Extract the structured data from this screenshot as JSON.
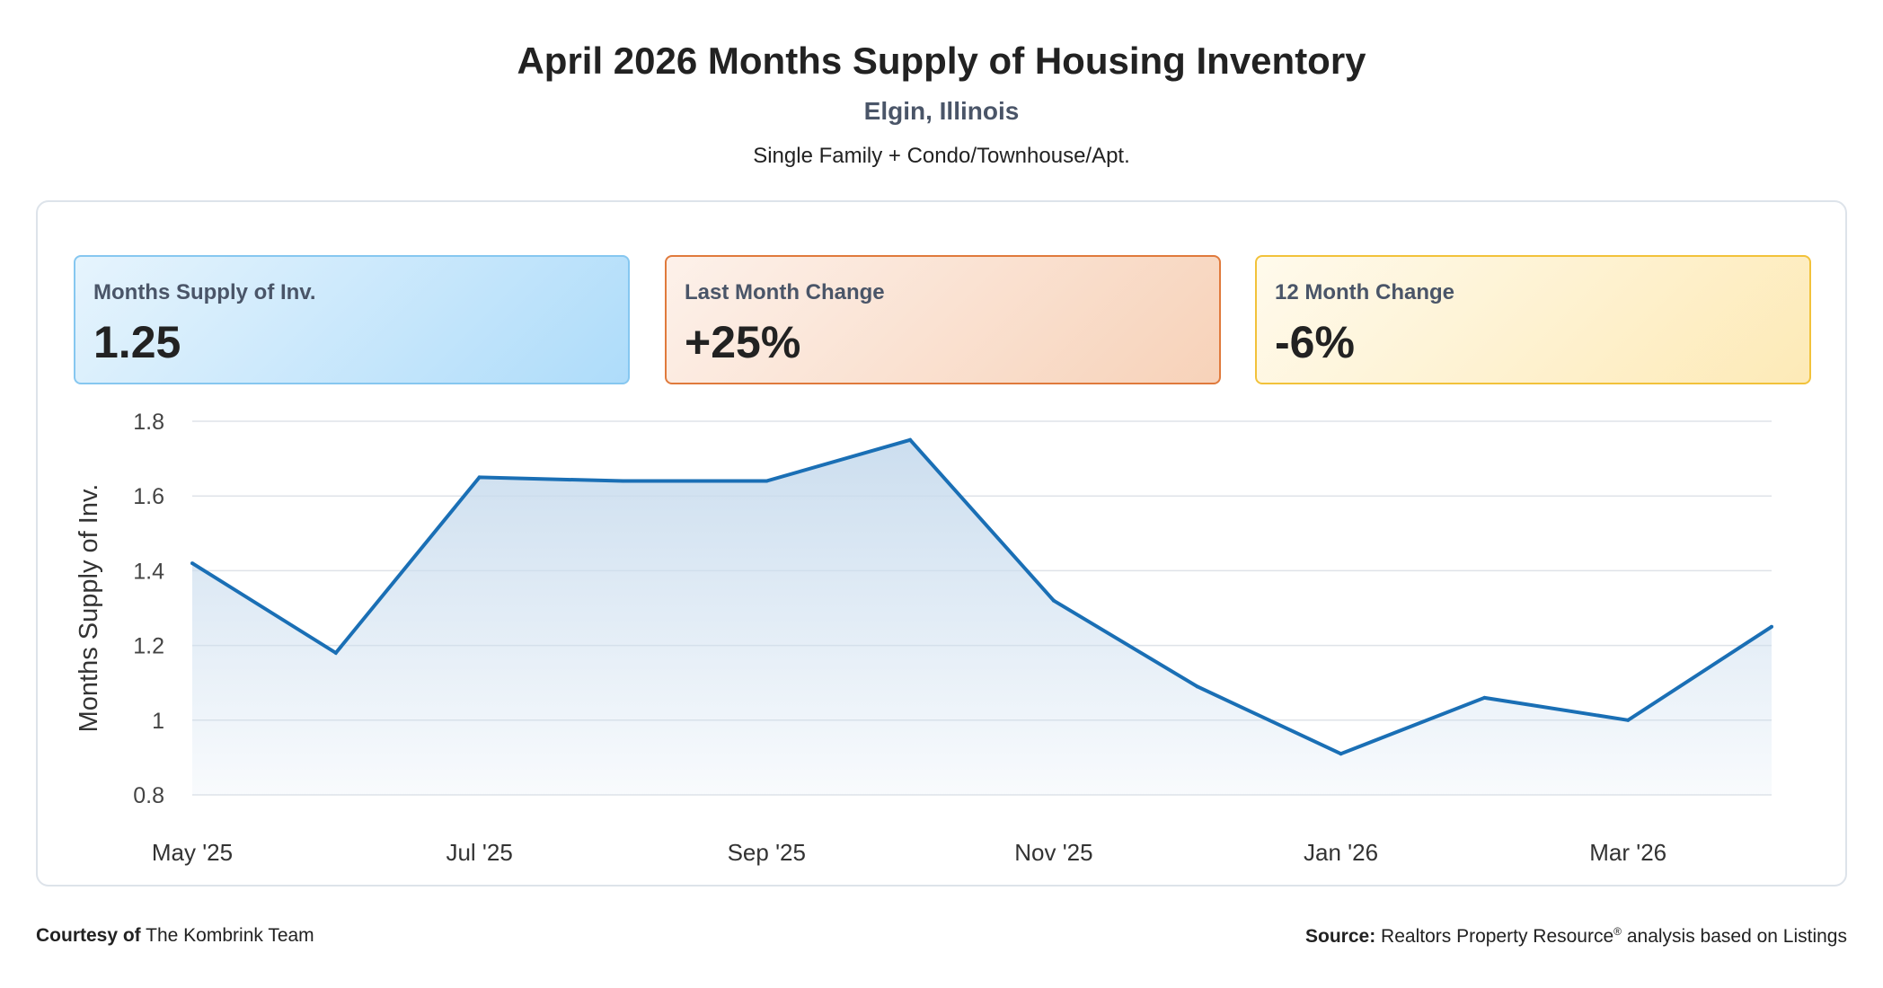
{
  "header": {
    "title": "April 2026 Months Supply of Housing Inventory",
    "subtitle": "Elgin, Illinois",
    "description": "Single Family + Condo/Townhouse/Apt."
  },
  "stats": [
    {
      "label": "Months Supply of Inv.",
      "value": "1.25",
      "color": "#86c7f0"
    },
    {
      "label": "Last Month Change",
      "value": "+25%",
      "color": "#e07a3c"
    },
    {
      "label": "12 Month Change",
      "value": "-6%",
      "color": "#f2c23a"
    }
  ],
  "chart_data": {
    "type": "area",
    "x": [
      "May '25",
      "Jun '25",
      "Jul '25",
      "Aug '25",
      "Sep '25",
      "Oct '25",
      "Nov '25",
      "Dec '25",
      "Jan '26",
      "Feb '26",
      "Mar '26",
      "Apr '26"
    ],
    "x_tick_labels": [
      "May '25",
      "Jul '25",
      "Sep '25",
      "Nov '25",
      "Jan '26",
      "Mar '26"
    ],
    "series": [
      {
        "values": [
          1.42,
          1.18,
          1.65,
          1.64,
          1.64,
          1.75,
          1.32,
          1.09,
          0.91,
          1.06,
          1.0,
          1.25
        ],
        "color": "#1a6fb5"
      }
    ],
    "ylabel": "Months Supply of Inv.",
    "ylim": [
      0.8,
      1.8
    ],
    "y_ticks": [
      "0.8",
      "1",
      "1.2",
      "1.4",
      "1.6",
      "1.8"
    ],
    "grid": true,
    "area_color": "#c9dcee"
  },
  "footer": {
    "courtesy_label": "Courtesy of",
    "courtesy_value": "The Kombrink Team",
    "source_label": "Source:",
    "source_value": "Realtors Property Resource",
    "source_mark": "®",
    "source_suffix": " analysis based on Listings"
  }
}
